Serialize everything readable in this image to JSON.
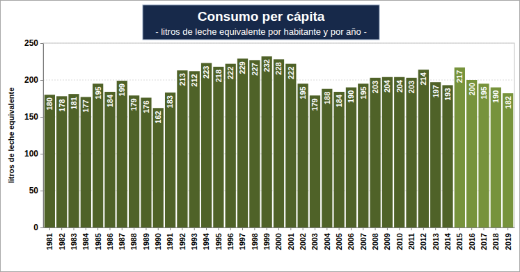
{
  "chart_data": {
    "type": "bar",
    "title": "Consumo per cápita",
    "subtitle": "- litros de leche equivalente por habitante y por año -",
    "y_label": "litros de leche equivalente",
    "categories": [
      "1981",
      "1982",
      "1983",
      "1984",
      "1985",
      "1986",
      "1987",
      "1988",
      "1989",
      "1990",
      "1991",
      "1992",
      "1993",
      "1994",
      "1995",
      "1996",
      "1997",
      "1998",
      "1999",
      "2000",
      "2001",
      "2002",
      "2003",
      "2004",
      "2005",
      "2006",
      "2007",
      "2008",
      "2009",
      "2010",
      "2011",
      "2012",
      "2013",
      "2014",
      "2015",
      "2016",
      "2017",
      "2018",
      "2019"
    ],
    "values": [
      180,
      178,
      181,
      177,
      195,
      184,
      199,
      179,
      176,
      162,
      183,
      213,
      212,
      223,
      218,
      222,
      229,
      227,
      232,
      228,
      222,
      195,
      179,
      188,
      184,
      190,
      195,
      203,
      204,
      204,
      203,
      214,
      197,
      193,
      217,
      200,
      195,
      190,
      182
    ],
    "colors": [
      "#4f6228",
      "#4f6228",
      "#4f6228",
      "#4f6228",
      "#4f6228",
      "#4f6228",
      "#4f6228",
      "#4f6228",
      "#4f6228",
      "#4f6228",
      "#4f6228",
      "#4f6228",
      "#4f6228",
      "#4f6228",
      "#4f6228",
      "#4f6228",
      "#4f6228",
      "#4f6228",
      "#4f6228",
      "#4f6228",
      "#4f6228",
      "#4f6228",
      "#4f6228",
      "#4f6228",
      "#4f6228",
      "#4f6228",
      "#4f6228",
      "#4f6228",
      "#4f6228",
      "#4f6228",
      "#4f6228",
      "#4f6228",
      "#4f6228",
      "#4f6228",
      "#77933c",
      "#77933c",
      "#77933c",
      "#77933c",
      "#77933c"
    ],
    "ylim": [
      0,
      250
    ],
    "yticks": [
      0,
      50,
      100,
      150,
      200,
      250
    ],
    "grid": true,
    "data_labels": true
  }
}
